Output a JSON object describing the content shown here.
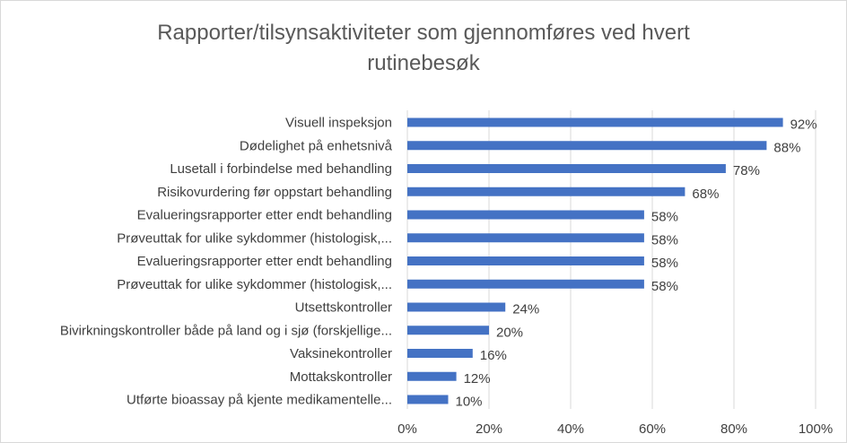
{
  "chart_data": {
    "type": "bar",
    "orientation": "horizontal",
    "title_line1": "Rapporter/tilsynsaktiviteter som gjennomføres ved hvert",
    "title_line2": "rutinebesøk",
    "categories": [
      "Visuell inspeksjon",
      "Dødelighet på enhetsnivå",
      "Lusetall i forbindelse med behandling",
      "Risikovurdering før oppstart behandling",
      "Evalueringsrapporter etter endt behandling",
      "Prøveuttak for ulike sykdommer (histologisk,...",
      "Evalueringsrapporter etter endt behandling",
      "Prøveuttak for ulike sykdommer (histologisk,...",
      "Utsettskontroller",
      "Bivirkningskontroller både på land og i sjø (forskjellige...",
      "Vaksinekontroller",
      "Mottakskontroller",
      "Utførte bioassay på kjente medikamentelle..."
    ],
    "values": [
      92,
      88,
      78,
      68,
      58,
      58,
      58,
      58,
      24,
      20,
      16,
      12,
      10
    ],
    "value_labels": [
      "92%",
      "88%",
      "78%",
      "68%",
      "58%",
      "58%",
      "58%",
      "58%",
      "24%",
      "20%",
      "16%",
      "12%",
      "10%"
    ],
    "xlim": [
      0,
      100
    ],
    "x_ticks": [
      0,
      20,
      40,
      60,
      80,
      100
    ],
    "x_tick_labels": [
      "0%",
      "20%",
      "40%",
      "60%",
      "80%",
      "100%"
    ],
    "grid": true,
    "legend": "none",
    "bar_color": "#4472c4",
    "grid_color": "#d9d9d9"
  }
}
